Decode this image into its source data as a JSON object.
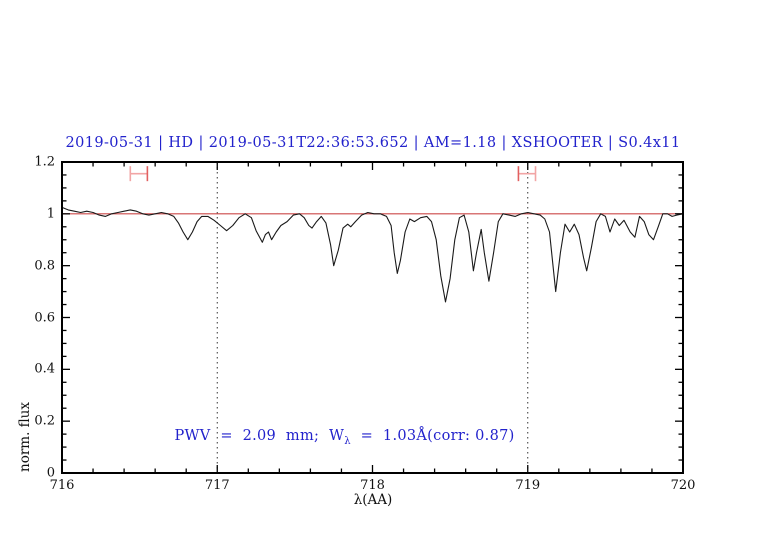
{
  "title": "2019-05-31 | HD | 2019-05-31T22:36:53.652 | AM=1.18 | XSHOOTER | S0.4x11",
  "title_color": "#2222cc",
  "annotation": {
    "pre": "PWV  =  2.09  mm;  W",
    "sub": "λ",
    "post": "  =  1.03Å(corr: 0.87)",
    "color": "#2222cc"
  },
  "chart_data": {
    "type": "line",
    "title": "2019-05-31 | HD | 2019-05-31T22:36:53.652 | AM=1.18 | XSHOOTER | S0.4x11",
    "xlabel": "λ(AA)",
    "ylabel": "norm. flux",
    "xlim": [
      716,
      720
    ],
    "ylim": [
      0,
      1.2
    ],
    "x_tick_values": [
      716,
      717,
      718,
      719,
      720
    ],
    "x_tick_labels": [
      "716",
      "717",
      "718",
      "719",
      "720"
    ],
    "x_minor_step": 0.2,
    "y_tick_values": [
      0,
      0.2,
      0.4,
      0.6,
      0.8,
      1,
      1.2
    ],
    "y_tick_labels": [
      "0",
      "0.2",
      "0.4",
      "0.6",
      "0.8",
      "1",
      "1.2"
    ],
    "y_minor_step": 0.05,
    "grid": false,
    "legend": false,
    "vlines": {
      "x": [
        717,
        719
      ],
      "style": "dotted",
      "color": "#333333"
    },
    "hline": {
      "y": 1.0,
      "color": "#cc4848"
    },
    "range_markers": {
      "color": "#f2a5a5",
      "accent_color": "#e26060",
      "items": [
        {
          "x1": 716.44,
          "x2": 716.55,
          "y": 1.155,
          "accent_cap": "right"
        },
        {
          "x1": 718.94,
          "x2": 719.05,
          "y": 1.155,
          "accent_cap": "left"
        }
      ]
    },
    "series": [
      {
        "name": "telluric-spectrum",
        "color": "#1a1a1a",
        "x": [
          716.0,
          716.04,
          716.08,
          716.12,
          716.16,
          716.2,
          716.24,
          716.28,
          716.32,
          716.36,
          716.4,
          716.44,
          716.48,
          716.52,
          716.56,
          716.6,
          716.64,
          716.68,
          716.72,
          716.75,
          716.78,
          716.81,
          716.84,
          716.87,
          716.9,
          716.94,
          716.98,
          717.02,
          717.06,
          717.1,
          717.14,
          717.18,
          717.22,
          717.25,
          717.29,
          717.31,
          717.33,
          717.35,
          717.38,
          717.41,
          717.45,
          717.49,
          717.53,
          717.56,
          717.59,
          717.61,
          717.64,
          717.67,
          717.7,
          717.73,
          717.75,
          717.78,
          717.81,
          717.84,
          717.86,
          717.89,
          717.93,
          717.97,
          718.01,
          718.05,
          718.09,
          718.12,
          718.14,
          718.16,
          718.18,
          718.21,
          718.24,
          718.27,
          718.31,
          718.35,
          718.38,
          718.41,
          718.44,
          718.47,
          718.5,
          718.53,
          718.56,
          718.59,
          718.62,
          718.65,
          718.67,
          718.7,
          718.72,
          718.75,
          718.78,
          718.81,
          718.84,
          718.88,
          718.92,
          718.96,
          719.0,
          719.04,
          719.08,
          719.11,
          719.14,
          719.18,
          719.21,
          719.24,
          719.27,
          719.3,
          719.33,
          719.36,
          719.38,
          719.41,
          719.44,
          719.47,
          719.5,
          719.53,
          719.56,
          719.59,
          719.62,
          719.66,
          719.69,
          719.72,
          719.75,
          719.78,
          719.81,
          719.84,
          719.87,
          719.9,
          719.93,
          719.96,
          720.0
        ],
        "y": [
          1.025,
          1.015,
          1.01,
          1.005,
          1.01,
          1.005,
          0.995,
          0.99,
          1.0,
          1.005,
          1.01,
          1.015,
          1.01,
          1.0,
          0.995,
          1.0,
          1.005,
          1.0,
          0.99,
          0.965,
          0.93,
          0.9,
          0.93,
          0.97,
          0.99,
          0.99,
          0.975,
          0.955,
          0.935,
          0.955,
          0.985,
          1.0,
          0.985,
          0.935,
          0.89,
          0.92,
          0.93,
          0.9,
          0.93,
          0.955,
          0.97,
          0.995,
          1.0,
          0.985,
          0.955,
          0.945,
          0.97,
          0.99,
          0.965,
          0.88,
          0.8,
          0.86,
          0.945,
          0.96,
          0.95,
          0.97,
          0.995,
          1.005,
          1.0,
          1.0,
          0.99,
          0.955,
          0.85,
          0.77,
          0.82,
          0.93,
          0.98,
          0.97,
          0.985,
          0.99,
          0.97,
          0.9,
          0.76,
          0.66,
          0.75,
          0.9,
          0.985,
          0.995,
          0.93,
          0.78,
          0.85,
          0.94,
          0.85,
          0.74,
          0.85,
          0.97,
          1.0,
          0.995,
          0.99,
          1.0,
          1.005,
          1.0,
          0.995,
          0.98,
          0.93,
          0.7,
          0.85,
          0.96,
          0.93,
          0.96,
          0.92,
          0.83,
          0.78,
          0.87,
          0.97,
          1.0,
          0.99,
          0.93,
          0.98,
          0.955,
          0.975,
          0.93,
          0.91,
          0.99,
          0.97,
          0.92,
          0.9,
          0.95,
          1.0,
          1.0,
          0.99,
          0.995,
          1.0
        ]
      }
    ]
  }
}
